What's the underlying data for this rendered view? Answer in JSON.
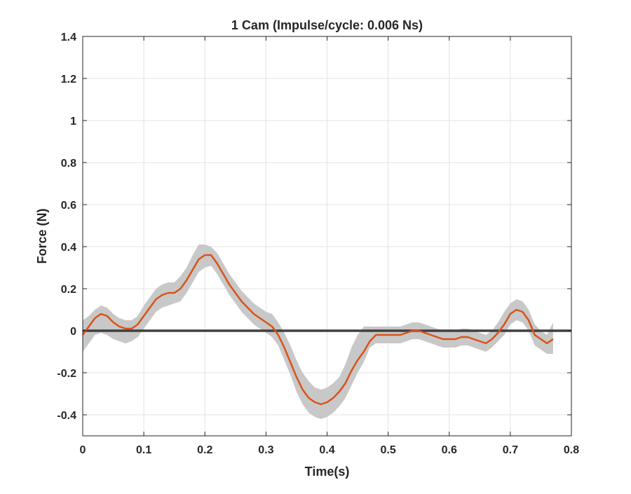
{
  "chart_data": {
    "type": "line",
    "title": "1 Cam (Impulse/cycle: 0.006 Ns)",
    "xlabel": "Time(s)",
    "ylabel": "Force (N)",
    "xlim": [
      0,
      0.8
    ],
    "ylim": [
      -0.5,
      1.4
    ],
    "xticks": [
      0,
      0.1,
      0.2,
      0.3,
      0.4,
      0.5,
      0.6,
      0.7,
      0.8
    ],
    "xtick_labels": [
      "0",
      "0.1",
      "0.2",
      "0.3",
      "0.4",
      "0.5",
      "0.6",
      "0.7",
      "0.8"
    ],
    "yticks": [
      -0.4,
      -0.2,
      0,
      0.2,
      0.4,
      0.6,
      0.8,
      1,
      1.2,
      1.4
    ],
    "ytick_labels": [
      "-0.4",
      "-0.2",
      "0",
      "0.2",
      "0.4",
      "0.6",
      "0.8",
      "1",
      "1.2",
      "1.4"
    ],
    "grid": true,
    "zero_line": {
      "y": 0,
      "color": "#404040"
    },
    "colors": {
      "mean": "#d95319",
      "band": "#c8c8c8"
    },
    "series": [
      {
        "x": [
          0,
          0.01,
          0.02,
          0.03,
          0.04,
          0.05,
          0.06,
          0.07,
          0.08,
          0.09,
          0.1,
          0.11,
          0.12,
          0.13,
          0.14,
          0.15,
          0.16,
          0.17,
          0.18,
          0.19,
          0.2,
          0.21,
          0.22,
          0.23,
          0.24,
          0.25,
          0.26,
          0.27,
          0.28,
          0.29,
          0.3,
          0.31,
          0.32,
          0.33,
          0.34,
          0.35,
          0.36,
          0.37,
          0.38,
          0.39,
          0.4,
          0.41,
          0.42,
          0.43,
          0.44,
          0.45,
          0.46,
          0.47,
          0.48,
          0.49,
          0.5,
          0.51,
          0.52,
          0.53,
          0.54,
          0.55,
          0.56,
          0.57,
          0.58,
          0.59,
          0.6,
          0.61,
          0.62,
          0.63,
          0.64,
          0.65,
          0.66,
          0.67,
          0.68,
          0.69,
          0.7,
          0.71,
          0.72,
          0.73,
          0.74,
          0.75,
          0.76,
          0.77
        ],
        "y": [
          -0.02,
          0.02,
          0.06,
          0.08,
          0.07,
          0.04,
          0.02,
          0.01,
          0.01,
          0.03,
          0.07,
          0.11,
          0.15,
          0.17,
          0.18,
          0.18,
          0.2,
          0.24,
          0.29,
          0.34,
          0.36,
          0.36,
          0.32,
          0.27,
          0.22,
          0.18,
          0.14,
          0.11,
          0.08,
          0.06,
          0.04,
          0.02,
          -0.02,
          -0.08,
          -0.15,
          -0.22,
          -0.28,
          -0.32,
          -0.34,
          -0.35,
          -0.34,
          -0.32,
          -0.29,
          -0.25,
          -0.19,
          -0.14,
          -0.1,
          -0.05,
          -0.02,
          -0.02,
          -0.02,
          -0.02,
          -0.02,
          -0.01,
          0.0,
          0.0,
          -0.01,
          -0.02,
          -0.03,
          -0.04,
          -0.04,
          -0.04,
          -0.03,
          -0.03,
          -0.04,
          -0.05,
          -0.06,
          -0.04,
          -0.01,
          0.03,
          0.08,
          0.1,
          0.09,
          0.05,
          -0.02,
          -0.04,
          -0.06,
          -0.04
        ]
      },
      {
        "name": "±SD band",
        "y_upper": [
          0.05,
          0.07,
          0.1,
          0.12,
          0.11,
          0.08,
          0.06,
          0.05,
          0.05,
          0.07,
          0.12,
          0.16,
          0.2,
          0.22,
          0.23,
          0.23,
          0.26,
          0.3,
          0.36,
          0.41,
          0.41,
          0.4,
          0.37,
          0.32,
          0.27,
          0.23,
          0.19,
          0.16,
          0.13,
          0.11,
          0.09,
          0.08,
          0.04,
          -0.01,
          -0.07,
          -0.14,
          -0.2,
          -0.24,
          -0.27,
          -0.28,
          -0.27,
          -0.25,
          -0.22,
          -0.16,
          -0.08,
          -0.02,
          0.02,
          0.02,
          0.02,
          0.02,
          0.02,
          0.02,
          0.02,
          0.03,
          0.04,
          0.04,
          0.03,
          0.02,
          0.01,
          0.0,
          0.0,
          0.0,
          0.01,
          0.01,
          0.0,
          -0.01,
          -0.02,
          0.0,
          0.04,
          0.09,
          0.13,
          0.15,
          0.14,
          0.1,
          0.03,
          0.0,
          -0.02,
          0.04
        ],
        "y_lower": [
          -0.1,
          -0.06,
          -0.02,
          -0.01,
          -0.02,
          -0.04,
          -0.05,
          -0.06,
          -0.05,
          -0.03,
          0.01,
          0.05,
          0.09,
          0.11,
          0.12,
          0.13,
          0.14,
          0.18,
          0.23,
          0.28,
          0.3,
          0.31,
          0.27,
          0.22,
          0.17,
          0.13,
          0.09,
          0.06,
          0.03,
          0.01,
          -0.01,
          -0.03,
          -0.07,
          -0.14,
          -0.21,
          -0.29,
          -0.35,
          -0.39,
          -0.41,
          -0.42,
          -0.41,
          -0.39,
          -0.36,
          -0.32,
          -0.26,
          -0.2,
          -0.15,
          -0.08,
          -0.06,
          -0.06,
          -0.06,
          -0.06,
          -0.06,
          -0.05,
          -0.04,
          -0.04,
          -0.05,
          -0.06,
          -0.07,
          -0.08,
          -0.08,
          -0.08,
          -0.07,
          -0.07,
          -0.08,
          -0.09,
          -0.1,
          -0.08,
          -0.05,
          -0.02,
          0.03,
          0.05,
          0.04,
          0.0,
          -0.07,
          -0.09,
          -0.11,
          -0.11
        ]
      }
    ]
  }
}
